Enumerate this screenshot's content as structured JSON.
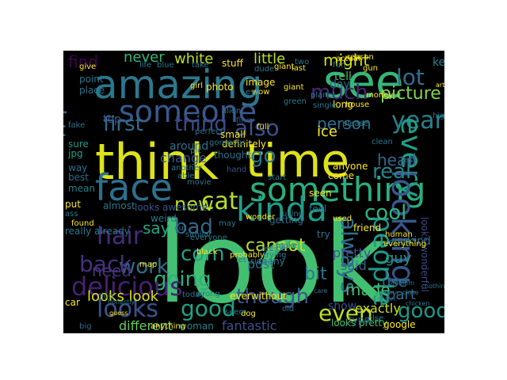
{
  "background": "#000000",
  "page_background": "#ffffff",
  "words": [
    {
      "text": "look",
      "color": "#43bf71"
    },
    {
      "text": "think",
      "color": "#dde318"
    },
    {
      "text": "time",
      "color": "#dde318"
    },
    {
      "text": "amazing",
      "color": "#2a788e"
    },
    {
      "text": "see",
      "color": "#35b779"
    },
    {
      "text": "something",
      "color": "#29af7f"
    },
    {
      "text": "face",
      "color": "#2c718e"
    },
    {
      "text": "someone",
      "color": "#38598c"
    },
    {
      "text": "kinda",
      "color": "#1f9e89"
    },
    {
      "text": "looks",
      "color": "#3b528b"
    },
    {
      "text": "good",
      "color": "#20a386"
    },
    {
      "text": "good",
      "color": "#1f988b"
    },
    {
      "text": "cat",
      "color": "#b8de29"
    },
    {
      "text": "much",
      "color": "#482878"
    },
    {
      "text": "lot",
      "color": "#2d708e"
    },
    {
      "text": "http",
      "color": "#2e6e8e"
    },
    {
      "text": "also",
      "color": "#3b528b"
    },
    {
      "text": "first",
      "color": "#2e6d8e"
    },
    {
      "text": "thing",
      "color": "#3e4989"
    },
    {
      "text": "year",
      "color": "#26828e"
    },
    {
      "text": "every",
      "color": "#1fa088"
    },
    {
      "text": "looking",
      "color": "#39568c"
    },
    {
      "text": "people",
      "color": "#1f9a8a"
    },
    {
      "text": "hair",
      "color": "#472d7b"
    },
    {
      "text": "new",
      "color": "#b5de2b"
    },
    {
      "text": "bad",
      "color": "#31688e"
    },
    {
      "text": "com",
      "color": "#20a386"
    },
    {
      "text": "work",
      "color": "#2d708e"
    },
    {
      "text": "going",
      "color": "#2ab07f"
    },
    {
      "text": "back",
      "color": "#46337e"
    },
    {
      "text": "delicious",
      "color": "#482071"
    },
    {
      "text": "cool",
      "color": "#2fb47c"
    },
    {
      "text": "even",
      "color": "#bddf26"
    },
    {
      "text": "though",
      "color": "#38588c"
    },
    {
      "text": "always",
      "color": "#2e6f8e"
    },
    {
      "text": "go",
      "color": "#2a788e"
    },
    {
      "text": "real",
      "color": "#25848e"
    },
    {
      "text": "cannot",
      "color": "#bddf26"
    },
    {
      "text": "white",
      "color": "#bddf26"
    },
    {
      "text": "little",
      "color": "#bddf26"
    },
    {
      "text": "might",
      "color": "#d0e11c"
    },
    {
      "text": "picture",
      "color": "#84d44b"
    },
    {
      "text": "never",
      "color": "#35b779"
    },
    {
      "text": "find",
      "color": "#440154"
    },
    {
      "text": "person",
      "color": "#2c728e"
    },
    {
      "text": "head",
      "color": "#31688e"
    },
    {
      "text": "made",
      "color": "#46c06f"
    },
    {
      "text": "bit",
      "color": "#2b758e"
    },
    {
      "text": "say",
      "color": "#22a785"
    },
    {
      "text": "need",
      "color": "#46327e"
    },
    {
      "text": "looks look",
      "color": "#dde318"
    },
    {
      "text": "fantastic",
      "color": "#3b528b"
    },
    {
      "text": "different",
      "color": "#65cb5e"
    },
    {
      "text": "post",
      "color": "#2c728e"
    },
    {
      "text": "said",
      "color": "#31688e"
    },
    {
      "text": "pretty",
      "color": "#3b528b"
    },
    {
      "text": "ice",
      "color": "#fde725"
    },
    {
      "text": "guy",
      "color": "#1f968b"
    },
    {
      "text": "part",
      "color": "#2e6d8e"
    },
    {
      "text": "use",
      "color": "#2e6f8e"
    },
    {
      "text": "exactly",
      "color": "#cae11f"
    },
    {
      "text": "keep",
      "color": "#26828e"
    },
    {
      "text": "show",
      "color": "#3b528b"
    },
    {
      "text": "around",
      "color": "#2c728e"
    },
    {
      "text": "change",
      "color": "#38598c"
    },
    {
      "text": "top",
      "color": "#3b528b"
    },
    {
      "text": "kind",
      "color": "#2a788e"
    },
    {
      "text": "looks wonderful",
      "color": "#3e4989"
    },
    {
      "text": "looks pretty",
      "color": "#46c06f"
    },
    {
      "text": "google",
      "color": "#fde725"
    },
    {
      "text": "woman",
      "color": "#23898e"
    },
    {
      "text": "anything",
      "color": "#fde725"
    },
    {
      "text": "big",
      "color": "#2e6e8e"
    },
    {
      "text": "old",
      "color": "#2d708e"
    },
    {
      "text": "else",
      "color": "#218f8d"
    },
    {
      "text": "type",
      "color": "#31688e"
    },
    {
      "text": "day",
      "color": "#31688e"
    },
    {
      "text": "tell",
      "color": "#46c06f"
    },
    {
      "text": "last",
      "color": "#fde725"
    },
    {
      "text": "stuff",
      "color": "#fde725"
    },
    {
      "text": "image",
      "color": "#fde725"
    },
    {
      "text": "wow",
      "color": "#fde725"
    },
    {
      "text": "photo",
      "color": "#fde725"
    },
    {
      "text": "fine",
      "color": "#3b528b"
    },
    {
      "text": "full",
      "color": "#fde725"
    },
    {
      "text": "long",
      "color": "#fde725"
    },
    {
      "text": "small",
      "color": "#fde725"
    },
    {
      "text": "definitely",
      "color": "#fde725"
    },
    {
      "text": "thought",
      "color": "#2c728e"
    },
    {
      "text": "hand",
      "color": "#3b528b"
    },
    {
      "text": "anyone",
      "color": "#fde725"
    },
    {
      "text": "come",
      "color": "#fde725"
    },
    {
      "text": "feel",
      "color": "#2e6f8e"
    },
    {
      "text": "seen",
      "color": "#fde725"
    },
    {
      "text": "used",
      "color": "#fde725"
    },
    {
      "text": "looks awesome",
      "color": "#3b528b"
    },
    {
      "text": "mean",
      "color": "#26828e"
    },
    {
      "text": "best",
      "color": "#2e6e8e"
    },
    {
      "text": "way",
      "color": "#2d708e"
    },
    {
      "text": "place",
      "color": "#2c728e"
    },
    {
      "text": "point",
      "color": "#2a788e"
    },
    {
      "text": "fake",
      "color": "#2a788e"
    },
    {
      "text": "jpg",
      "color": "#20a386"
    },
    {
      "text": "sure",
      "color": "#1f988b"
    },
    {
      "text": "everwithout",
      "color": "#fde725"
    },
    {
      "text": "getting",
      "color": "#2e6e8e"
    },
    {
      "text": "try",
      "color": "#2c728e"
    },
    {
      "text": "edit",
      "color": "#2a788e"
    },
    {
      "text": "friend",
      "color": "#fde725"
    },
    {
      "text": "almost",
      "color": "#2a788e"
    },
    {
      "text": "put",
      "color": "#fde725"
    },
    {
      "text": "weird",
      "color": "#2a788e"
    },
    {
      "text": "really already",
      "color": "#2a788e"
    },
    {
      "text": "cut",
      "color": "#2a788e"
    },
    {
      "text": "similar",
      "color": "#2a788e"
    },
    {
      "text": "black",
      "color": "#fde725"
    },
    {
      "text": "probably",
      "color": "#fde725"
    },
    {
      "text": "let",
      "color": "#2a788e"
    },
    {
      "text": "recipe",
      "color": "#2a788e"
    },
    {
      "text": "trying",
      "color": "#2a788e"
    },
    {
      "text": "everyone",
      "color": "#2a788e"
    },
    {
      "text": "many",
      "color": "#2a788e"
    },
    {
      "text": "car",
      "color": "#fde725"
    },
    {
      "text": "dog",
      "color": "#fde725"
    },
    {
      "text": "make",
      "color": "#2a788e"
    },
    {
      "text": "may",
      "color": "#2a788e"
    },
    {
      "text": "ass",
      "color": "#2a788e"
    },
    {
      "text": "map",
      "color": "#fde725"
    },
    {
      "text": "found",
      "color": "#fde725"
    },
    {
      "text": "today",
      "color": "#2a788e"
    },
    {
      "text": "job",
      "color": "#2a788e"
    },
    {
      "text": "honestly",
      "color": "#2a788e"
    },
    {
      "text": "guess",
      "color": "#fde725"
    },
    {
      "text": "care",
      "color": "#2a788e"
    },
    {
      "text": "damn",
      "color": "#2a788e"
    },
    {
      "text": "gonna",
      "color": "#2a788e"
    },
    {
      "text": "problem",
      "color": "#2a788e"
    },
    {
      "text": "close",
      "color": "#2a788e"
    },
    {
      "text": "chicken",
      "color": "#2a788e"
    },
    {
      "text": "nothing",
      "color": "#2a788e"
    },
    {
      "text": "high",
      "color": "#2a788e"
    },
    {
      "text": "article",
      "color": "#fde725"
    },
    {
      "text": "gun",
      "color": "#fde725"
    },
    {
      "text": "house",
      "color": "#fde725"
    },
    {
      "text": "money",
      "color": "#fde725"
    },
    {
      "text": "planet",
      "color": "#2a788e"
    },
    {
      "text": "green",
      "color": "#2a788e"
    },
    {
      "text": "alien",
      "color": "#2a788e"
    },
    {
      "text": "gorgeous",
      "color": "#2a788e"
    },
    {
      "text": "perfect",
      "color": "#2a788e"
    },
    {
      "text": "girl",
      "color": "#fde725"
    },
    {
      "text": "give",
      "color": "#fde725"
    },
    {
      "text": "life",
      "color": "#2a788e"
    },
    {
      "text": "blue",
      "color": "#2a788e"
    },
    {
      "text": "take",
      "color": "#2a788e"
    },
    {
      "text": "giant",
      "color": "#fde725"
    },
    {
      "text": "two",
      "color": "#2a788e"
    },
    {
      "text": "fun",
      "color": "#2a788e"
    },
    {
      "text": "actual",
      "color": "#fde725"
    },
    {
      "text": "reason",
      "color": "#fde725"
    },
    {
      "text": "everything",
      "color": "#fde725"
    },
    {
      "text": "human",
      "color": "#fde725"
    },
    {
      "text": "using",
      "color": "#2a788e"
    },
    {
      "text": "start",
      "color": "#2a788e"
    },
    {
      "text": "wonder",
      "color": "#fde725"
    },
    {
      "text": "able",
      "color": "#2a788e"
    },
    {
      "text": "another",
      "color": "#2a788e"
    },
    {
      "text": "movie",
      "color": "#2a788e"
    },
    {
      "text": "pic",
      "color": "#2a788e"
    },
    {
      "text": "side",
      "color": "#2a788e"
    },
    {
      "text": "eye",
      "color": "#2a788e"
    },
    {
      "text": "wrong",
      "color": "#2a788e"
    },
    {
      "text": "seem",
      "color": "#2a788e"
    },
    {
      "text": "dude",
      "color": "#2a788e"
    },
    {
      "text": "giant",
      "color": "#fde725"
    },
    {
      "text": "single",
      "color": "#2a788e"
    },
    {
      "text": "please",
      "color": "#2a788e"
    },
    {
      "text": "clean",
      "color": "#2a788e"
    },
    {
      "text": "rest",
      "color": "#2a788e"
    }
  ]
}
